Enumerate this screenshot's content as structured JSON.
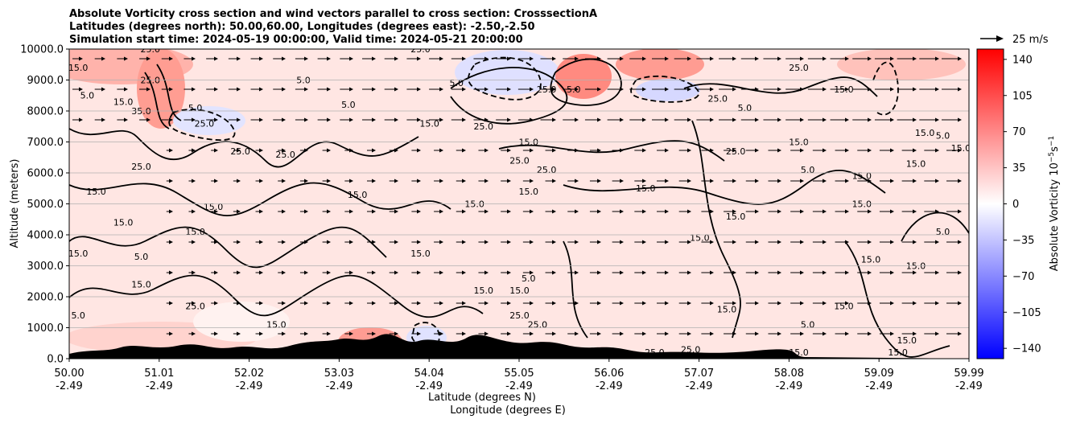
{
  "chart_data": {
    "type": "heatmap",
    "title_lines": [
      "Absolute Vorticity cross section and wind vectors parallel to cross section: CrosssectionA",
      "Latitudes (degrees north): 50.00,60.00, Longitudes (degrees east): -2.50,-2.50",
      "Simulation start time: 2024-05-19 00:00:00, Valid time: 2024-05-21 20:00:00"
    ],
    "ylabel": "Altitude (meters)",
    "xlabel_lines": [
      "Latitude (degrees N)",
      "Longitude (degrees E)"
    ],
    "x_ticks": [
      {
        "lat": "50.00",
        "lon": "-2.49"
      },
      {
        "lat": "51.01",
        "lon": "-2.49"
      },
      {
        "lat": "52.02",
        "lon": "-2.49"
      },
      {
        "lat": "53.03",
        "lon": "-2.49"
      },
      {
        "lat": "54.04",
        "lon": "-2.49"
      },
      {
        "lat": "55.05",
        "lon": "-2.49"
      },
      {
        "lat": "56.06",
        "lon": "-2.49"
      },
      {
        "lat": "57.07",
        "lon": "-2.49"
      },
      {
        "lat": "58.08",
        "lon": "-2.49"
      },
      {
        "lat": "59.09",
        "lon": "-2.49"
      },
      {
        "lat": "59.99",
        "lon": "-2.49"
      }
    ],
    "y_ticks": [
      "0.0",
      "1000.0",
      "2000.0",
      "3000.0",
      "4000.0",
      "5000.0",
      "6000.0",
      "7000.0",
      "8000.0",
      "9000.0",
      "10000.0"
    ],
    "ylim": [
      0,
      10000
    ],
    "grid": "horizontal",
    "colorbar": {
      "label": "Absolute Vorticity 10$^{-5}$s$^{-1}$",
      "label_main": "Absolute Vorticity 10",
      "label_exp1": "−5",
      "label_mid": "s",
      "label_exp2": "−1",
      "ticks": [
        "140",
        "105",
        "70",
        "35",
        "0",
        "−35",
        "−70",
        "−105",
        "−140"
      ],
      "range": [
        -150,
        150
      ],
      "cmap": "bwr"
    },
    "quiver_key": "25 m/s",
    "contour_labels": [
      {
        "t": "15.0",
        "lat": 50.1,
        "alt": 9300
      },
      {
        "t": "5.0",
        "lat": 50.2,
        "alt": 8400
      },
      {
        "t": "25.0",
        "lat": 50.9,
        "alt": 9900
      },
      {
        "t": "15.0",
        "lat": 50.6,
        "alt": 8200
      },
      {
        "t": "25.0",
        "lat": 50.9,
        "alt": 8900
      },
      {
        "t": "35.0",
        "lat": 50.8,
        "alt": 7900
      },
      {
        "t": "25.0",
        "lat": 51.5,
        "alt": 7500
      },
      {
        "t": "5.0",
        "lat": 51.4,
        "alt": 8000
      },
      {
        "t": "25.0",
        "lat": 51.9,
        "alt": 6600
      },
      {
        "t": "25.0",
        "lat": 50.8,
        "alt": 6100
      },
      {
        "t": "15.0",
        "lat": 50.3,
        "alt": 5300
      },
      {
        "t": "15.0",
        "lat": 50.6,
        "alt": 4300
      },
      {
        "t": "15.0",
        "lat": 51.6,
        "alt": 4800
      },
      {
        "t": "15.0",
        "lat": 51.4,
        "alt": 4000
      },
      {
        "t": "15.0",
        "lat": 50.1,
        "alt": 3300
      },
      {
        "t": "5.0",
        "lat": 50.8,
        "alt": 3200
      },
      {
        "t": "15.0",
        "lat": 50.8,
        "alt": 2300
      },
      {
        "t": "5.0",
        "lat": 50.1,
        "alt": 1300
      },
      {
        "t": "25.0",
        "lat": 51.4,
        "alt": 1600
      },
      {
        "t": "15.0",
        "lat": 52.3,
        "alt": 1000
      },
      {
        "t": "15.0",
        "lat": 53.2,
        "alt": 5200
      },
      {
        "t": "25.0",
        "lat": 52.4,
        "alt": 6500
      },
      {
        "t": "25.0",
        "lat": 53.9,
        "alt": 9900
      },
      {
        "t": "15.0",
        "lat": 54.0,
        "alt": 7500
      },
      {
        "t": "5.0",
        "lat": 52.6,
        "alt": 8900
      },
      {
        "t": "5.0",
        "lat": 53.1,
        "alt": 8100
      },
      {
        "t": "25.0",
        "lat": 54.6,
        "alt": 7400
      },
      {
        "t": "15.0",
        "lat": 55.1,
        "alt": 6900
      },
      {
        "t": "25.0",
        "lat": 55.0,
        "alt": 6300
      },
      {
        "t": "25.0",
        "lat": 55.3,
        "alt": 6000
      },
      {
        "t": "15.0",
        "lat": 55.1,
        "alt": 5300
      },
      {
        "t": "15.0",
        "lat": 54.5,
        "alt": 4900
      },
      {
        "t": "15.0",
        "lat": 53.9,
        "alt": 3300
      },
      {
        "t": "15.0",
        "lat": 54.6,
        "alt": 2100
      },
      {
        "t": "5.0",
        "lat": 55.1,
        "alt": 2500
      },
      {
        "t": "15.0",
        "lat": 55.0,
        "alt": 2100
      },
      {
        "t": "25.0",
        "lat": 55.0,
        "alt": 1300
      },
      {
        "t": "25.0",
        "lat": 55.2,
        "alt": 1000
      },
      {
        "t": "15.0",
        "lat": 56.4,
        "alt": 5400
      },
      {
        "t": "5.0",
        "lat": 54.3,
        "alt": 8800
      },
      {
        "t": "25.0",
        "lat": 55.3,
        "alt": 8600
      },
      {
        "t": "5.0",
        "lat": 55.6,
        "alt": 8600
      },
      {
        "t": "25.0",
        "lat": 57.2,
        "alt": 8300
      },
      {
        "t": "5.0",
        "lat": 57.5,
        "alt": 8000
      },
      {
        "t": "25.0",
        "lat": 58.1,
        "alt": 9300
      },
      {
        "t": "15.0",
        "lat": 58.1,
        "alt": 6900
      },
      {
        "t": "25.0",
        "lat": 57.4,
        "alt": 6600
      },
      {
        "t": "5.0",
        "lat": 58.2,
        "alt": 6000
      },
      {
        "t": "15.0",
        "lat": 57.0,
        "alt": 3800
      },
      {
        "t": "15.0",
        "lat": 57.4,
        "alt": 4500
      },
      {
        "t": "15.0",
        "lat": 58.6,
        "alt": 8600
      },
      {
        "t": "15.0",
        "lat": 59.5,
        "alt": 7200
      },
      {
        "t": "15.0",
        "lat": 59.4,
        "alt": 6200
      },
      {
        "t": "5.0",
        "lat": 59.7,
        "alt": 7100
      },
      {
        "t": "15.0",
        "lat": 59.9,
        "alt": 6700
      },
      {
        "t": "15.0",
        "lat": 58.8,
        "alt": 5800
      },
      {
        "t": "15.0",
        "lat": 58.8,
        "alt": 4900
      },
      {
        "t": "15.0",
        "lat": 58.6,
        "alt": 1600
      },
      {
        "t": "15.0",
        "lat": 58.1,
        "alt": 100
      },
      {
        "t": "15.0",
        "lat": 59.2,
        "alt": 100
      },
      {
        "t": "15.0",
        "lat": 59.4,
        "alt": 2900
      },
      {
        "t": "15.0",
        "lat": 58.9,
        "alt": 3100
      },
      {
        "t": "25.0",
        "lat": 56.9,
        "alt": 200
      },
      {
        "t": "25.0",
        "lat": 56.5,
        "alt": 100
      },
      {
        "t": "5.0",
        "lat": 58.2,
        "alt": 1000
      },
      {
        "t": "15.0",
        "lat": 57.3,
        "alt": 1500
      },
      {
        "t": "5.0",
        "lat": 59.7,
        "alt": 4000
      },
      {
        "t": "15.0",
        "lat": 59.3,
        "alt": 500
      }
    ]
  }
}
